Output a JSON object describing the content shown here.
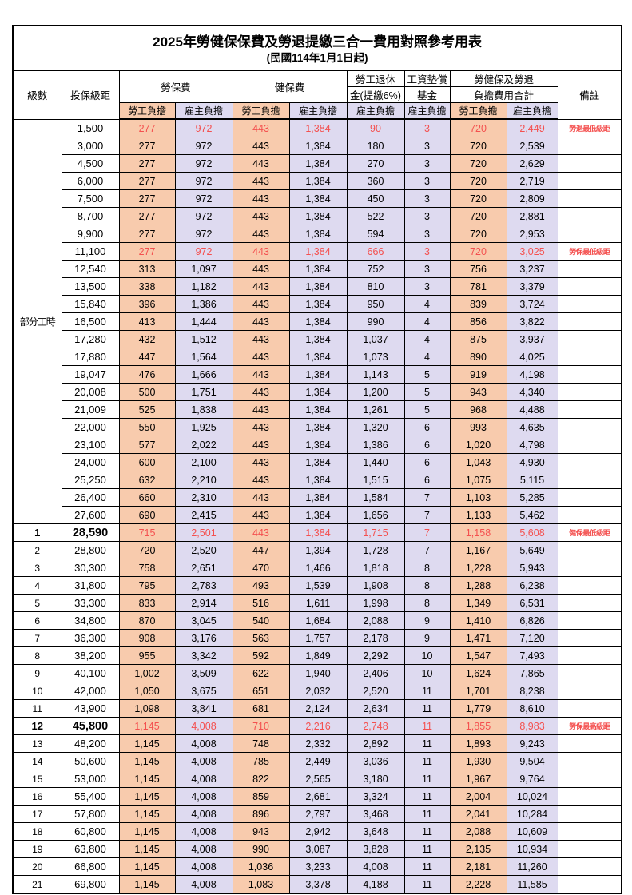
{
  "page": {
    "title": "2025年勞健保保費及勞退提繳三合一費用對照參考用表",
    "subtitle": "(民國114年1月1日起)"
  },
  "colors": {
    "employee_bg": "#F8CBAD",
    "employer_bg": "#DEDAF0",
    "highlight_text": "#F4504F",
    "border": "#000000"
  },
  "columns": {
    "level": "級數",
    "salary": "投保級距",
    "labor": "勞保費",
    "health": "健保費",
    "pension_line1": "勞工退休",
    "pension_line2": "金(提繳6%)",
    "wagefund_line1": "工資墊償",
    "wagefund_line2": "基金",
    "total_line1": "勞健保及勞退",
    "total_line2": "負擔費用合計",
    "remark": "備註",
    "employee": "勞工負擔",
    "employer": "雇主負擔"
  },
  "group_label": "部分工時",
  "group_span": 23,
  "rows": [
    {
      "sal": "1,500",
      "v": [
        "277",
        "972",
        "443",
        "1,384",
        "90",
        "3",
        "720",
        "2,449"
      ],
      "rm": "勞退最低級距",
      "hl": true
    },
    {
      "sal": "3,000",
      "v": [
        "277",
        "972",
        "443",
        "1,384",
        "180",
        "3",
        "720",
        "2,539"
      ],
      "rm": ""
    },
    {
      "sal": "4,500",
      "v": [
        "277",
        "972",
        "443",
        "1,384",
        "270",
        "3",
        "720",
        "2,629"
      ],
      "rm": ""
    },
    {
      "sal": "6,000",
      "v": [
        "277",
        "972",
        "443",
        "1,384",
        "360",
        "3",
        "720",
        "2,719"
      ],
      "rm": ""
    },
    {
      "sal": "7,500",
      "v": [
        "277",
        "972",
        "443",
        "1,384",
        "450",
        "3",
        "720",
        "2,809"
      ],
      "rm": ""
    },
    {
      "sal": "8,700",
      "v": [
        "277",
        "972",
        "443",
        "1,384",
        "522",
        "3",
        "720",
        "2,881"
      ],
      "rm": ""
    },
    {
      "sal": "9,900",
      "v": [
        "277",
        "972",
        "443",
        "1,384",
        "594",
        "3",
        "720",
        "2,953"
      ],
      "rm": ""
    },
    {
      "sal": "11,100",
      "v": [
        "277",
        "972",
        "443",
        "1,384",
        "666",
        "3",
        "720",
        "3,025"
      ],
      "rm": "勞保最低級距",
      "hl": true
    },
    {
      "sal": "12,540",
      "v": [
        "313",
        "1,097",
        "443",
        "1,384",
        "752",
        "3",
        "756",
        "3,237"
      ],
      "rm": ""
    },
    {
      "sal": "13,500",
      "v": [
        "338",
        "1,182",
        "443",
        "1,384",
        "810",
        "3",
        "781",
        "3,379"
      ],
      "rm": ""
    },
    {
      "sal": "15,840",
      "v": [
        "396",
        "1,386",
        "443",
        "1,384",
        "950",
        "4",
        "839",
        "3,724"
      ],
      "rm": ""
    },
    {
      "sal": "16,500",
      "v": [
        "413",
        "1,444",
        "443",
        "1,384",
        "990",
        "4",
        "856",
        "3,822"
      ],
      "rm": ""
    },
    {
      "sal": "17,280",
      "v": [
        "432",
        "1,512",
        "443",
        "1,384",
        "1,037",
        "4",
        "875",
        "3,937"
      ],
      "rm": ""
    },
    {
      "sal": "17,880",
      "v": [
        "447",
        "1,564",
        "443",
        "1,384",
        "1,073",
        "4",
        "890",
        "4,025"
      ],
      "rm": ""
    },
    {
      "sal": "19,047",
      "v": [
        "476",
        "1,666",
        "443",
        "1,384",
        "1,143",
        "5",
        "919",
        "4,198"
      ],
      "rm": ""
    },
    {
      "sal": "20,008",
      "v": [
        "500",
        "1,751",
        "443",
        "1,384",
        "1,200",
        "5",
        "943",
        "4,340"
      ],
      "rm": ""
    },
    {
      "sal": "21,009",
      "v": [
        "525",
        "1,838",
        "443",
        "1,384",
        "1,261",
        "5",
        "968",
        "4,488"
      ],
      "rm": ""
    },
    {
      "sal": "22,000",
      "v": [
        "550",
        "1,925",
        "443",
        "1,384",
        "1,320",
        "6",
        "993",
        "4,635"
      ],
      "rm": ""
    },
    {
      "sal": "23,100",
      "v": [
        "577",
        "2,022",
        "443",
        "1,384",
        "1,386",
        "6",
        "1,020",
        "4,798"
      ],
      "rm": ""
    },
    {
      "sal": "24,000",
      "v": [
        "600",
        "2,100",
        "443",
        "1,384",
        "1,440",
        "6",
        "1,043",
        "4,930"
      ],
      "rm": ""
    },
    {
      "sal": "25,250",
      "v": [
        "632",
        "2,210",
        "443",
        "1,384",
        "1,515",
        "6",
        "1,075",
        "5,115"
      ],
      "rm": ""
    },
    {
      "sal": "26,400",
      "v": [
        "660",
        "2,310",
        "443",
        "1,384",
        "1,584",
        "7",
        "1,103",
        "5,285"
      ],
      "rm": ""
    },
    {
      "sal": "27,600",
      "v": [
        "690",
        "2,415",
        "443",
        "1,384",
        "1,656",
        "7",
        "1,133",
        "5,462"
      ],
      "rm": ""
    },
    {
      "lv": "1",
      "sal": "28,590",
      "v": [
        "715",
        "2,501",
        "443",
        "1,384",
        "1,715",
        "7",
        "1,158",
        "5,608"
      ],
      "rm": "健保最低級距",
      "hl": true,
      "b": true
    },
    {
      "lv": "2",
      "sal": "28,800",
      "v": [
        "720",
        "2,520",
        "447",
        "1,394",
        "1,728",
        "7",
        "1,167",
        "5,649"
      ],
      "rm": ""
    },
    {
      "lv": "3",
      "sal": "30,300",
      "v": [
        "758",
        "2,651",
        "470",
        "1,466",
        "1,818",
        "8",
        "1,228",
        "5,943"
      ],
      "rm": ""
    },
    {
      "lv": "4",
      "sal": "31,800",
      "v": [
        "795",
        "2,783",
        "493",
        "1,539",
        "1,908",
        "8",
        "1,288",
        "6,238"
      ],
      "rm": ""
    },
    {
      "lv": "5",
      "sal": "33,300",
      "v": [
        "833",
        "2,914",
        "516",
        "1,611",
        "1,998",
        "8",
        "1,349",
        "6,531"
      ],
      "rm": ""
    },
    {
      "lv": "6",
      "sal": "34,800",
      "v": [
        "870",
        "3,045",
        "540",
        "1,684",
        "2,088",
        "9",
        "1,410",
        "6,826"
      ],
      "rm": ""
    },
    {
      "lv": "7",
      "sal": "36,300",
      "v": [
        "908",
        "3,176",
        "563",
        "1,757",
        "2,178",
        "9",
        "1,471",
        "7,120"
      ],
      "rm": ""
    },
    {
      "lv": "8",
      "sal": "38,200",
      "v": [
        "955",
        "3,342",
        "592",
        "1,849",
        "2,292",
        "10",
        "1,547",
        "7,493"
      ],
      "rm": ""
    },
    {
      "lv": "9",
      "sal": "40,100",
      "v": [
        "1,002",
        "3,509",
        "622",
        "1,940",
        "2,406",
        "10",
        "1,624",
        "7,865"
      ],
      "rm": ""
    },
    {
      "lv": "10",
      "sal": "42,000",
      "v": [
        "1,050",
        "3,675",
        "651",
        "2,032",
        "2,520",
        "11",
        "1,701",
        "8,238"
      ],
      "rm": ""
    },
    {
      "lv": "11",
      "sal": "43,900",
      "v": [
        "1,098",
        "3,841",
        "681",
        "2,124",
        "2,634",
        "11",
        "1,779",
        "8,610"
      ],
      "rm": ""
    },
    {
      "lv": "12",
      "sal": "45,800",
      "v": [
        "1,145",
        "4,008",
        "710",
        "2,216",
        "2,748",
        "11",
        "1,855",
        "8,983"
      ],
      "rm": "勞保最高級距",
      "hl": true,
      "b": true
    },
    {
      "lv": "13",
      "sal": "48,200",
      "v": [
        "1,145",
        "4,008",
        "748",
        "2,332",
        "2,892",
        "11",
        "1,893",
        "9,243"
      ],
      "rm": ""
    },
    {
      "lv": "14",
      "sal": "50,600",
      "v": [
        "1,145",
        "4,008",
        "785",
        "2,449",
        "3,036",
        "11",
        "1,930",
        "9,504"
      ],
      "rm": ""
    },
    {
      "lv": "15",
      "sal": "53,000",
      "v": [
        "1,145",
        "4,008",
        "822",
        "2,565",
        "3,180",
        "11",
        "1,967",
        "9,764"
      ],
      "rm": ""
    },
    {
      "lv": "16",
      "sal": "55,400",
      "v": [
        "1,145",
        "4,008",
        "859",
        "2,681",
        "3,324",
        "11",
        "2,004",
        "10,024"
      ],
      "rm": ""
    },
    {
      "lv": "17",
      "sal": "57,800",
      "v": [
        "1,145",
        "4,008",
        "896",
        "2,797",
        "3,468",
        "11",
        "2,041",
        "10,284"
      ],
      "rm": ""
    },
    {
      "lv": "18",
      "sal": "60,800",
      "v": [
        "1,145",
        "4,008",
        "943",
        "2,942",
        "3,648",
        "11",
        "2,088",
        "10,609"
      ],
      "rm": ""
    },
    {
      "lv": "19",
      "sal": "63,800",
      "v": [
        "1,145",
        "4,008",
        "990",
        "3,087",
        "3,828",
        "11",
        "2,135",
        "10,934"
      ],
      "rm": ""
    },
    {
      "lv": "20",
      "sal": "66,800",
      "v": [
        "1,145",
        "4,008",
        "1,036",
        "3,233",
        "4,008",
        "11",
        "2,181",
        "11,260"
      ],
      "rm": ""
    },
    {
      "lv": "21",
      "sal": "69,800",
      "v": [
        "1,145",
        "4,008",
        "1,083",
        "3,378",
        "4,188",
        "11",
        "2,228",
        "11,585"
      ],
      "rm": ""
    }
  ]
}
